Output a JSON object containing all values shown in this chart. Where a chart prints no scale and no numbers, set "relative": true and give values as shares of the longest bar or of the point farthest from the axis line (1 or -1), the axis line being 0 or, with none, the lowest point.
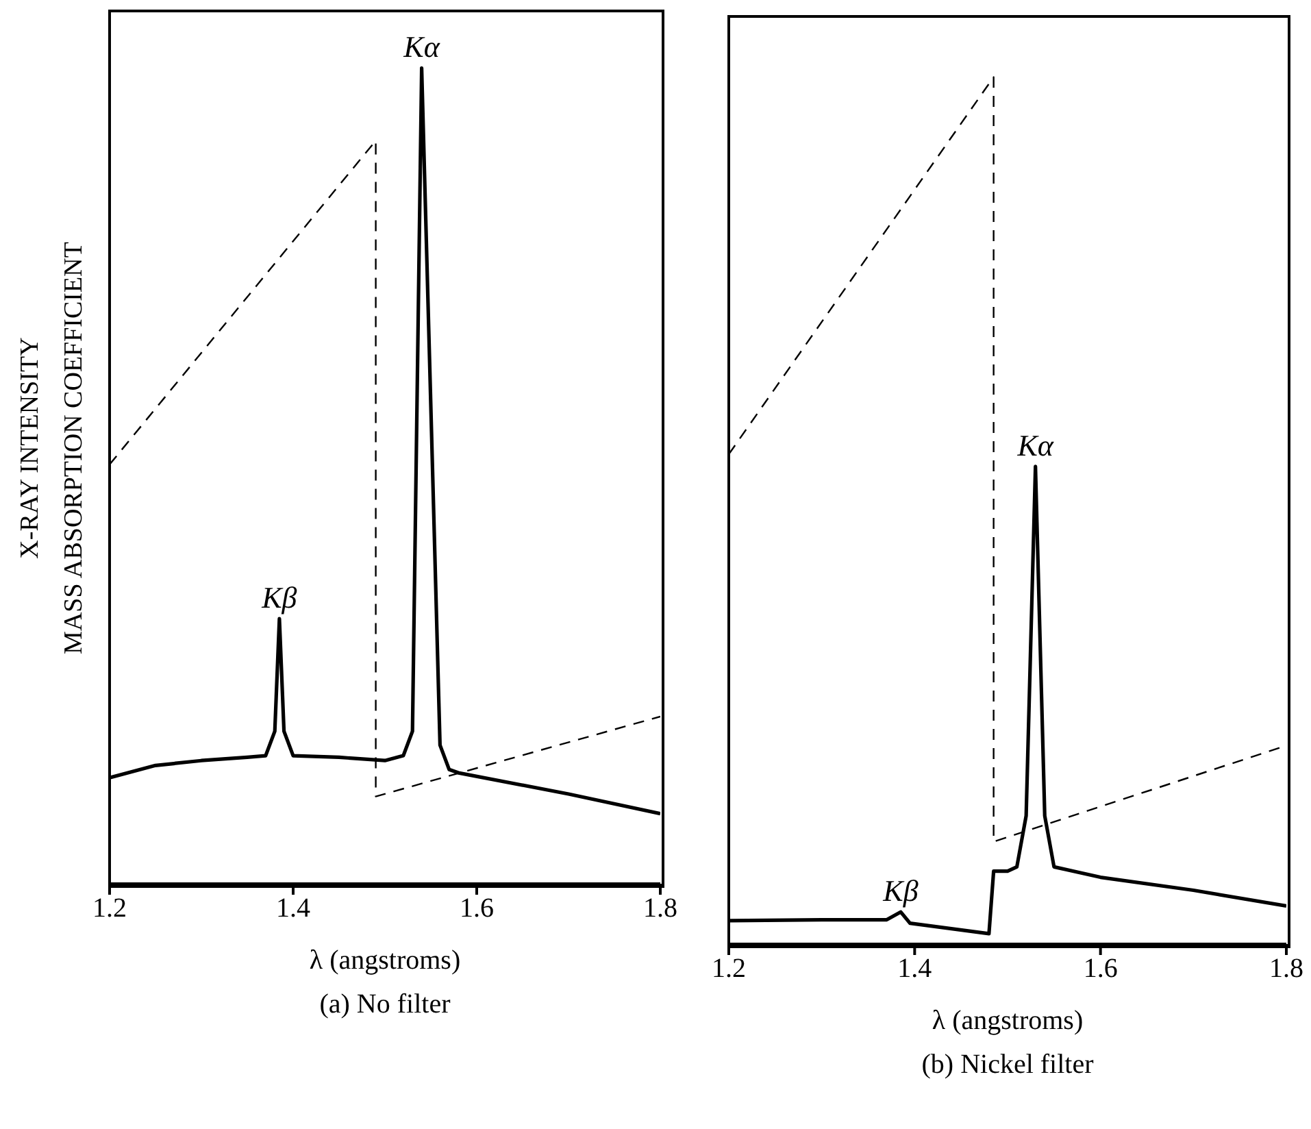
{
  "chart_data": [
    {
      "type": "line",
      "title": "(a)  No filter",
      "xlabel": "λ (angstroms)",
      "ylabel": "X-RAY INTENSITY\nMASS ABSORPTION COEFFICIENT",
      "relative": true,
      "xlim": [
        1.2,
        1.8
      ],
      "xticks": [
        1.2,
        1.4,
        1.6,
        1.8
      ],
      "tick_labels": "x",
      "marker": "none",
      "annotations": [
        {
          "text": "Kα",
          "x": 1.54,
          "y": 1.0
        },
        {
          "text": "Kβ",
          "x": 1.385,
          "y": 0.325
        }
      ],
      "series": [
        {
          "color": "#000000",
          "line_style": "solid",
          "x": [
            1.2,
            1.25,
            1.3,
            1.35,
            1.37,
            1.38,
            1.385,
            1.39,
            1.4,
            1.45,
            1.5,
            1.52,
            1.53,
            1.54,
            1.56,
            1.57,
            1.58,
            1.7,
            1.8
          ],
          "values": [
            0.13,
            0.145,
            0.151,
            0.155,
            0.157,
            0.187,
            0.325,
            0.187,
            0.157,
            0.155,
            0.151,
            0.157,
            0.187,
            1.0,
            0.17,
            0.14,
            0.136,
            0.11,
            0.086
          ]
        },
        {
          "color": "#000000",
          "line_style": "dashed",
          "x": [
            1.2,
            1.49,
            1.49,
            1.8
          ],
          "values": [
            0.514,
            0.911,
            0.107,
            0.205
          ]
        }
      ]
    },
    {
      "type": "line",
      "title": "(b)  Nickel filter",
      "xlabel": "λ (angstroms)",
      "relative": true,
      "xlim": [
        1.2,
        1.8
      ],
      "xticks": [
        1.2,
        1.4,
        1.6,
        1.8
      ],
      "tick_labels": "x",
      "marker": "none",
      "annotations": [
        {
          "text": "Kα",
          "x": 1.53,
          "y": 0.551
        },
        {
          "text": "Kβ",
          "x": 1.385,
          "y": 0.037
        }
      ],
      "series": [
        {
          "color": "#000000",
          "line_style": "solid",
          "x": [
            1.2,
            1.3,
            1.37,
            1.385,
            1.395,
            1.48,
            1.485,
            1.5,
            1.51,
            1.52,
            1.53,
            1.54,
            1.55,
            1.6,
            1.7,
            1.8
          ],
          "values": [
            0.027,
            0.028,
            0.028,
            0.037,
            0.024,
            0.012,
            0.084,
            0.084,
            0.089,
            0.148,
            0.551,
            0.148,
            0.089,
            0.077,
            0.062,
            0.044
          ]
        },
        {
          "color": "#000000",
          "line_style": "dashed",
          "x": [
            1.2,
            1.485,
            1.485,
            1.8
          ],
          "values": [
            0.565,
            1.0,
            0.118,
            0.229
          ]
        }
      ]
    }
  ]
}
